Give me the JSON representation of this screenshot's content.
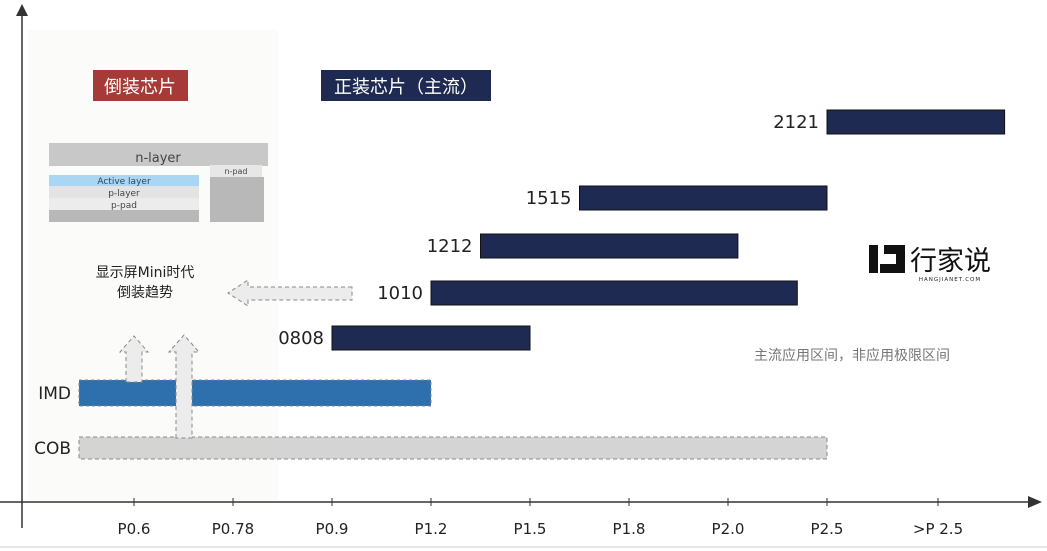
{
  "chart_data": {
    "type": "bar",
    "x_categories": [
      "P0.6",
      "P0.78",
      "P0.9",
      "P1.2",
      "P1.5",
      "P1.8",
      "P2.0",
      "P2.5",
      ">P 2.5"
    ],
    "series": [
      {
        "name": "2121",
        "start": 2.5,
        "end": 3.3,
        "color": "#1f2a52"
      },
      {
        "name": "1515",
        "start": 1.65,
        "end": 2.5,
        "color": "#1f2a52"
      },
      {
        "name": "1212",
        "start": 1.35,
        "end": 2.05,
        "color": "#1f2a52"
      },
      {
        "name": "1010",
        "start": 1.2,
        "end": 2.35,
        "color": "#1f2a52"
      },
      {
        "name": "0808",
        "start": 0.9,
        "end": 1.5,
        "color": "#1f2a52"
      },
      {
        "name": "IMD",
        "start": 0.5,
        "end": 1.2,
        "color": "#2e6fad"
      },
      {
        "name": "COB",
        "start": 0.5,
        "end": 2.5,
        "color": "#d4d4d4"
      }
    ],
    "sections": {
      "flip_chip": "倒装芯片",
      "face_up": "正装芯片（主流）"
    },
    "chip_diagram": {
      "n_layer": "n-layer",
      "active_layer": "Active layer",
      "p_layer": "p-layer",
      "p_pad": "p-pad",
      "n_pad": "n-pad"
    },
    "trend_text": [
      "显示屏Mini时代",
      "倒装趋势"
    ],
    "note": "主流应用区间，非应用极限区间",
    "brand": {
      "name": "行家说",
      "sub": "HANGJIANET.COM"
    },
    "colors": {
      "flip": "#a63a36",
      "face": "#1f2a52",
      "imd": "#2e6fad",
      "cob": "#d4d4d4"
    }
  }
}
